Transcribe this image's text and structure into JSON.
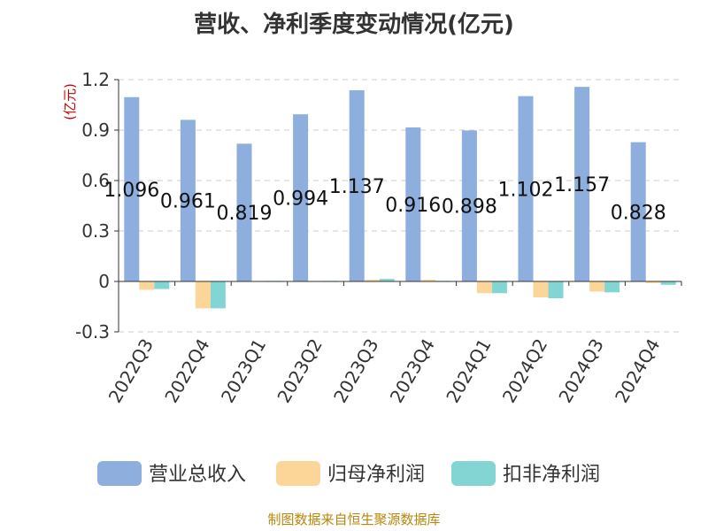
{
  "chart_data": {
    "type": "bar",
    "title": "营收、净利季度变动情况(亿元)",
    "unit_label": "(亿元)",
    "categories": [
      "2022Q3",
      "2022Q4",
      "2023Q1",
      "2023Q2",
      "2023Q3",
      "2023Q4",
      "2024Q1",
      "2024Q2",
      "2024Q3",
      "2024Q4"
    ],
    "series": [
      {
        "name": "营业总收入",
        "color": "#8eaedd",
        "values": [
          1.096,
          0.961,
          0.819,
          0.994,
          1.137,
          0.916,
          0.898,
          1.102,
          1.157,
          0.828
        ],
        "labels": [
          "1.096",
          "0.961",
          "0.819",
          "0.994",
          "1.137",
          "0.916",
          "0.898",
          "1.102",
          "1.157",
          "0.828"
        ]
      },
      {
        "name": "归母净利润",
        "color": "#fcd699",
        "values": [
          -0.05,
          -0.16,
          0.0,
          0.005,
          0.01,
          0.01,
          -0.07,
          -0.095,
          -0.06,
          -0.01
        ]
      },
      {
        "name": "扣非净利润",
        "color": "#83d5d3",
        "values": [
          -0.045,
          -0.16,
          0.0,
          0.0,
          0.015,
          0.0,
          -0.07,
          -0.1,
          -0.065,
          -0.02
        ]
      }
    ],
    "y_ticks": [
      "1.2",
      "0.9",
      "0.6",
      "0.3",
      "0",
      "-0.3"
    ],
    "ylim": [
      -0.3,
      1.2
    ],
    "grid": true,
    "legend_position": "bottom"
  },
  "source_note": "制图数据来自恒生聚源数据库"
}
